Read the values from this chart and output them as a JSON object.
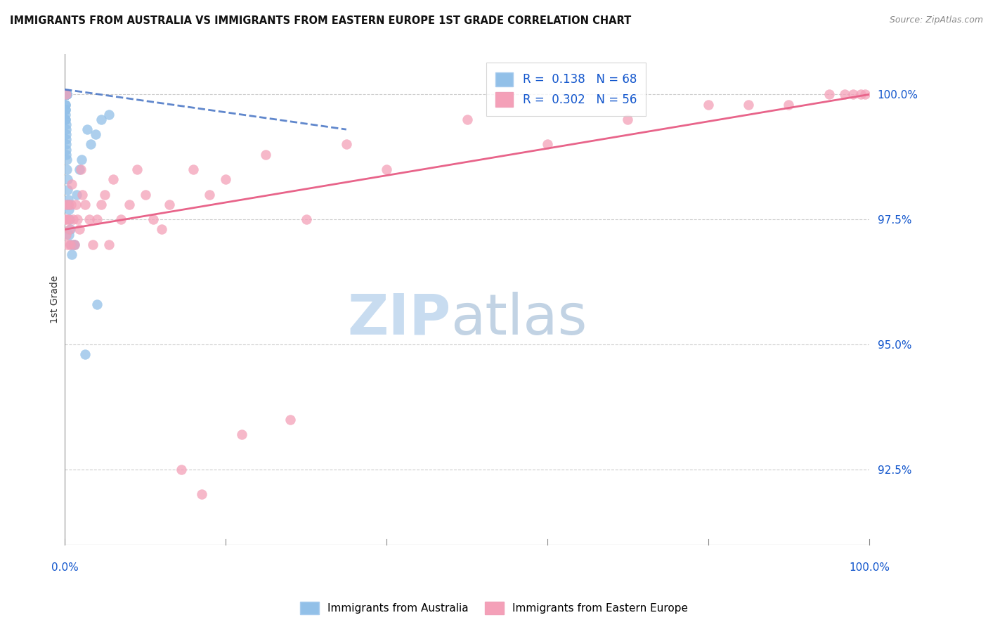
{
  "title": "IMMIGRANTS FROM AUSTRALIA VS IMMIGRANTS FROM EASTERN EUROPE 1ST GRADE CORRELATION CHART",
  "source": "Source: ZipAtlas.com",
  "ylabel": "1st Grade",
  "xlim": [
    0,
    100
  ],
  "ylim": [
    91.0,
    100.8
  ],
  "blue_R": 0.138,
  "blue_N": 68,
  "pink_R": 0.302,
  "pink_N": 56,
  "blue_line_color": "#4472C4",
  "pink_line_color": "#E8648A",
  "blue_dot_color": "#92C0E8",
  "pink_dot_color": "#F4A0B8",
  "grid_color": "#CCCCCC",
  "background_color": "#FFFFFF",
  "watermark_zip_color": "#C8DCF0",
  "watermark_atlas_color": "#B8CCE0",
  "ytick_vals": [
    92.5,
    95.0,
    97.5,
    100.0
  ],
  "ytick_labels": [
    "92.5%",
    "95.0%",
    "97.5%",
    "100.0%"
  ],
  "legend_labels": [
    "R =  0.138   N = 68",
    "R =  0.302   N = 56"
  ],
  "footer_labels": [
    "Immigrants from Australia",
    "Immigrants from Eastern Europe"
  ],
  "blue_x": [
    0.05,
    0.06,
    0.07,
    0.08,
    0.08,
    0.09,
    0.09,
    0.1,
    0.1,
    0.1,
    0.11,
    0.11,
    0.12,
    0.12,
    0.13,
    0.13,
    0.14,
    0.15,
    0.15,
    0.16,
    0.17,
    0.18,
    0.19,
    0.2,
    0.21,
    0.22,
    0.23,
    0.25,
    0.26,
    0.28,
    0.05,
    0.06,
    0.07,
    0.08,
    0.09,
    0.1,
    0.11,
    0.12,
    0.13,
    0.14,
    0.15,
    0.16,
    0.18,
    0.2,
    0.22,
    0.25,
    0.3,
    0.35,
    0.4,
    0.5,
    0.6,
    0.7,
    0.8,
    0.9,
    1.1,
    1.5,
    1.8,
    2.1,
    2.8,
    3.2,
    3.8,
    4.5,
    5.5,
    0.45,
    0.55,
    1.2,
    2.5,
    4.0
  ],
  "blue_y": [
    100.0,
    100.0,
    100.0,
    100.0,
    100.0,
    100.0,
    100.0,
    100.0,
    100.0,
    100.0,
    100.0,
    100.0,
    100.0,
    100.0,
    100.0,
    100.0,
    100.0,
    100.0,
    100.0,
    100.0,
    100.0,
    100.0,
    100.0,
    100.0,
    100.0,
    100.0,
    100.0,
    100.0,
    100.0,
    100.0,
    99.8,
    99.8,
    99.7,
    99.7,
    99.6,
    99.5,
    99.5,
    99.4,
    99.3,
    99.2,
    99.1,
    99.0,
    98.9,
    98.8,
    98.7,
    98.5,
    98.3,
    98.1,
    97.9,
    97.7,
    97.5,
    97.3,
    97.0,
    96.8,
    97.0,
    98.0,
    98.5,
    98.7,
    99.3,
    99.0,
    99.2,
    99.5,
    99.6,
    97.8,
    97.2,
    97.0,
    94.8,
    95.8
  ],
  "pink_x": [
    0.05,
    0.1,
    0.15,
    0.2,
    0.25,
    0.3,
    0.4,
    0.5,
    0.6,
    0.7,
    0.8,
    0.9,
    1.0,
    1.2,
    1.4,
    1.6,
    1.8,
    2.0,
    2.2,
    2.5,
    3.0,
    3.5,
    4.0,
    4.5,
    5.0,
    5.5,
    6.0,
    7.0,
    8.0,
    9.0,
    10.0,
    11.0,
    12.0,
    13.0,
    14.5,
    16.0,
    17.0,
    18.0,
    20.0,
    22.0,
    25.0,
    28.0,
    30.0,
    35.0,
    40.0,
    50.0,
    60.0,
    70.0,
    80.0,
    85.0,
    90.0,
    95.0,
    97.0,
    98.0,
    99.0,
    99.5
  ],
  "pink_y": [
    97.8,
    97.5,
    100.0,
    97.2,
    97.5,
    97.0,
    97.8,
    97.5,
    97.3,
    97.0,
    97.8,
    98.2,
    97.5,
    97.0,
    97.8,
    97.5,
    97.3,
    98.5,
    98.0,
    97.8,
    97.5,
    97.0,
    97.5,
    97.8,
    98.0,
    97.0,
    98.3,
    97.5,
    97.8,
    98.5,
    98.0,
    97.5,
    97.3,
    97.8,
    92.5,
    98.5,
    92.0,
    98.0,
    98.3,
    93.2,
    98.8,
    93.5,
    97.5,
    99.0,
    98.5,
    99.5,
    99.0,
    99.5,
    99.8,
    99.8,
    99.8,
    100.0,
    100.0,
    100.0,
    100.0,
    100.0
  ]
}
